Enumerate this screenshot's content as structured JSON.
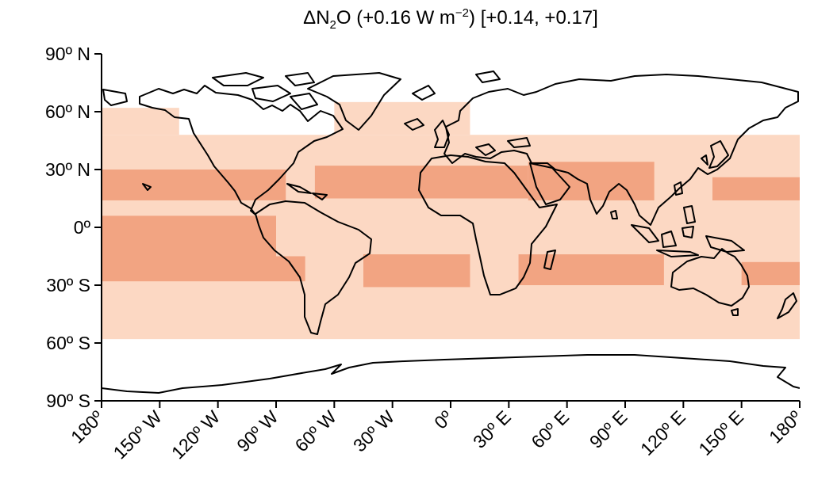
{
  "title": {
    "prefix": "ΔN",
    "sub": "2",
    "mid": "O (+0.16 W m",
    "sup": "−2",
    "suffix": ") [+0.14, +0.17]"
  },
  "map": {
    "projection": "equirectangular",
    "lon_range": [
      -180,
      180
    ],
    "lat_range": [
      -90,
      90
    ],
    "colors": {
      "low": "#fcd8c3",
      "high": "#f2a482",
      "coastline": "#000000"
    },
    "y_ticks": [
      {
        "lat": 90,
        "label": "90º N"
      },
      {
        "lat": 60,
        "label": "60º N"
      },
      {
        "lat": 30,
        "label": "30º N"
      },
      {
        "lat": 0,
        "label": "0º"
      },
      {
        "lat": -30,
        "label": "30º S"
      },
      {
        "lat": -60,
        "label": "60º S"
      },
      {
        "lat": -90,
        "label": "90º S"
      }
    ],
    "x_ticks": [
      {
        "lon": -180,
        "label": "180º"
      },
      {
        "lon": -150,
        "label": "150º W"
      },
      {
        "lon": -120,
        "label": "120º W"
      },
      {
        "lon": -90,
        "label": "90º W"
      },
      {
        "lon": -60,
        "label": "60º W"
      },
      {
        "lon": -30,
        "label": "30º W"
      },
      {
        "lon": 0,
        "label": "0º"
      },
      {
        "lon": 30,
        "label": "30º E"
      },
      {
        "lon": 60,
        "label": "60º E"
      },
      {
        "lon": 90,
        "label": "90º E"
      },
      {
        "lon": 120,
        "label": "120º E"
      },
      {
        "lon": 150,
        "label": "150º E"
      },
      {
        "lon": 180,
        "label": "180º"
      }
    ],
    "field": [
      {
        "level": "low",
        "lat": [
          -58,
          48
        ],
        "lon": [
          -180,
          180
        ]
      },
      {
        "level": "low",
        "lat": [
          48,
          65
        ],
        "lon": [
          -60,
          10
        ]
      },
      {
        "level": "low",
        "lat": [
          48,
          62
        ],
        "lon": [
          -180,
          -140
        ]
      },
      {
        "level": "high",
        "lat": [
          14,
          30
        ],
        "lon": [
          -180,
          -85
        ]
      },
      {
        "level": "high",
        "lat": [
          15,
          32
        ],
        "lon": [
          -70,
          40
        ]
      },
      {
        "level": "high",
        "lat": [
          14,
          34
        ],
        "lon": [
          40,
          105
        ]
      },
      {
        "level": "high",
        "lat": [
          14,
          26
        ],
        "lon": [
          135,
          180
        ]
      },
      {
        "level": "high",
        "lat": [
          -15,
          6
        ],
        "lon": [
          -180,
          -90
        ]
      },
      {
        "level": "high",
        "lat": [
          -28,
          -15
        ],
        "lon": [
          -180,
          -75
        ]
      },
      {
        "level": "high",
        "lat": [
          -31,
          -14
        ],
        "lon": [
          -45,
          10
        ]
      },
      {
        "level": "high",
        "lat": [
          -30,
          -14
        ],
        "lon": [
          35,
          110
        ]
      },
      {
        "level": "high",
        "lat": [
          -30,
          -18
        ],
        "lon": [
          150,
          180
        ]
      }
    ]
  }
}
